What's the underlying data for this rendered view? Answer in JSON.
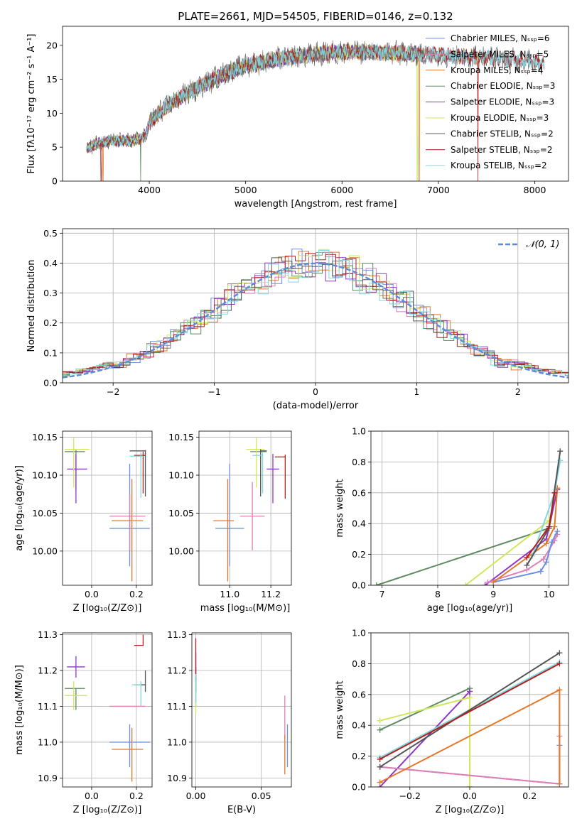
{
  "colors": {
    "Chabrier MILES": "#6d8fe0",
    "Salpeter MILES": "#e27fb4",
    "Kroupa MILES": "#e3772a",
    "Chabrier ELODIE": "#5f8a5f",
    "Salpeter ELODIE": "#8e38c6",
    "Kroupa ELODIE": "#cfe85a",
    "Chabrier STELIB": "#555555",
    "Salpeter STELIB": "#b41e1e",
    "Kroupa STELIB": "#80d8e0"
  },
  "chart_data": [
    {
      "id": "spectrum",
      "type": "line",
      "title": "PLATE=2661, MJD=54505, FIBERID=0146, z=0.132",
      "xlabel": "wavelength [Angstrom, rest frame]",
      "ylabel": "Flux [fλ10⁻¹⁷ erg cm⁻² s⁻¹ A⁻¹]",
      "xlim": [
        3100,
        8350
      ],
      "ylim": [
        0,
        22.8
      ],
      "xticks": [
        4000,
        5000,
        6000,
        7000,
        8000
      ],
      "yticks": [
        0,
        5,
        10,
        15,
        20
      ],
      "legend_placement": "top-right",
      "continuum_anchors": {
        "x": [
          3350,
          3450,
          3600,
          3800,
          3900,
          3960,
          4000,
          4100,
          4200,
          4400,
          4600,
          4800,
          5000,
          5200,
          5500,
          6000,
          6500,
          7000,
          7500,
          8000,
          8100
        ],
        "y": [
          4.8,
          5.5,
          6.0,
          5.9,
          6.2,
          6.6,
          8.6,
          10.0,
          11.2,
          13.0,
          14.5,
          15.9,
          17.0,
          17.6,
          18.3,
          19.0,
          18.9,
          18.6,
          18.2,
          17.6,
          17.3
        ]
      },
      "series": [
        {
          "name": "Chabrier MILES, Nₛₛₚ=6",
          "xrange": [
            3350,
            7400
          ],
          "dip_at": []
        },
        {
          "name": "Salpeter MILES, Nₛₛₚ=5",
          "xrange": [
            3350,
            7400
          ],
          "dip_at": []
        },
        {
          "name": "Kroupa MILES, Nₛₛₚ=4",
          "xrange": [
            3350,
            7420
          ],
          "dip_at": [
            3520,
            6800
          ]
        },
        {
          "name": "Chabrier ELODIE, Nₛₛₚ=3",
          "xrange": [
            3350,
            6800
          ],
          "dip_at": [
            3910
          ]
        },
        {
          "name": "Salpeter ELODIE, Nₛₛₚ=3",
          "xrange": [
            3350,
            6800
          ],
          "dip_at": []
        },
        {
          "name": "Kroupa ELODIE, Nₛₛₚ=3",
          "xrange": [
            3350,
            6800
          ],
          "dip_at": [
            6780
          ]
        },
        {
          "name": "Chabrier STELIB, Nₛₛₚ=2",
          "xrange": [
            3350,
            8100
          ],
          "dip_at": []
        },
        {
          "name": "Salpeter STELIB, Nₛₛₚ=2",
          "xrange": [
            3350,
            8100
          ],
          "dip_at": [
            3500,
            7410
          ]
        },
        {
          "name": "Kroupa STELIB, Nₛₛₚ=2",
          "xrange": [
            3350,
            8100
          ],
          "dip_at": []
        }
      ]
    },
    {
      "id": "residuals",
      "type": "histogram",
      "xlabel": "(data-model)/error",
      "ylabel": "Normed distribution",
      "xlim": [
        -2.5,
        2.5
      ],
      "ylim": [
        0,
        0.515
      ],
      "xticks": [
        -2,
        -1,
        0,
        1,
        2
      ],
      "yticks": [
        0,
        0.1,
        0.2,
        0.3,
        0.4,
        0.5
      ],
      "grid": true,
      "reference_curve": {
        "name": "𝒩(0, 1)",
        "mean": 0,
        "sigma": 1,
        "style": "dashed"
      },
      "bin_width": 0.1
    },
    {
      "id": "age_vs_Z",
      "type": "errorbar",
      "xlabel": "Z [log₁₀(Z/Z⊙)]",
      "ylabel": "age  [log₁₀(age/yr)]",
      "xlim": [
        -0.13,
        0.27
      ],
      "ylim": [
        9.955,
        10.158
      ],
      "xticks": [
        0.0,
        0.2
      ],
      "yticks": [
        10.0,
        10.05,
        10.1,
        10.15
      ],
      "grid": true,
      "points": [
        {
          "series": "Chabrier MILES",
          "x": 0.17,
          "y": 10.03,
          "xerr": [
            0.09,
            0.09
          ],
          "yerr": [
            0.05,
            0.085
          ]
        },
        {
          "series": "Salpeter MILES",
          "x": 0.17,
          "y": 10.046,
          "xerr": [
            0.09,
            0.07
          ],
          "yerr": [
            0.045,
            0.03
          ]
        },
        {
          "series": "Kroupa MILES",
          "x": 0.18,
          "y": 10.04,
          "xerr": [
            0.09,
            0.05
          ],
          "yerr": [
            0.08,
            0.055
          ]
        },
        {
          "series": "Chabrier ELODIE",
          "x": -0.07,
          "y": 10.131,
          "xerr": [
            0.05,
            0.04
          ],
          "yerr": [
            0.05,
            0.002
          ]
        },
        {
          "series": "Salpeter ELODIE",
          "x": -0.07,
          "y": 10.108,
          "xerr": [
            0.04,
            0.05
          ],
          "yerr": [
            0.045,
            0.02
          ]
        },
        {
          "series": "Kroupa ELODIE",
          "x": -0.08,
          "y": 10.134,
          "xerr": [
            0.04,
            0.07
          ],
          "yerr": [
            0.05,
            0.015
          ]
        },
        {
          "series": "Chabrier STELIB",
          "x": 0.24,
          "y": 10.132,
          "xerr": [
            0.07,
            0.002
          ],
          "yerr": [
            0.06,
            0.001
          ]
        },
        {
          "series": "Salpeter STELIB",
          "x": 0.23,
          "y": 10.126,
          "xerr": [
            0.04,
            0.01
          ],
          "yerr": [
            0.05,
            0.005
          ]
        },
        {
          "series": "Kroupa STELIB",
          "x": 0.22,
          "y": 10.125,
          "xerr": [
            0.05,
            0.01
          ],
          "yerr": [
            0.055,
            0.005
          ]
        }
      ]
    },
    {
      "id": "age_vs_mass",
      "type": "errorbar",
      "xlabel": "mass [log₁₀(M/M⊙)]",
      "ylabel": "",
      "xlim": [
        10.85,
        11.3
      ],
      "ylim": [
        9.955,
        10.158
      ],
      "xticks": [
        11.0,
        11.2
      ],
      "yticks": [
        10.0,
        10.05,
        10.1,
        10.15
      ],
      "grid": true,
      "points": [
        {
          "series": "Chabrier MILES",
          "x": 11.0,
          "y": 10.03,
          "xerr": [
            0.07,
            0.07
          ],
          "yerr": [
            0.05,
            0.085
          ]
        },
        {
          "series": "Salpeter MILES",
          "x": 11.11,
          "y": 10.046,
          "xerr": [
            0.06,
            0.06
          ],
          "yerr": [
            0.045,
            0.045
          ]
        },
        {
          "series": "Kroupa MILES",
          "x": 10.99,
          "y": 10.04,
          "xerr": [
            0.07,
            0.03
          ],
          "yerr": [
            0.08,
            0.055
          ]
        },
        {
          "series": "Chabrier ELODIE",
          "x": 11.15,
          "y": 10.131,
          "xerr": [
            0.05,
            0.03
          ],
          "yerr": [
            0.05,
            0.002
          ]
        },
        {
          "series": "Salpeter ELODIE",
          "x": 11.21,
          "y": 10.108,
          "xerr": [
            0.03,
            0.03
          ],
          "yerr": [
            0.045,
            0.02
          ]
        },
        {
          "series": "Kroupa ELODIE",
          "x": 11.13,
          "y": 10.134,
          "xerr": [
            0.05,
            0.04
          ],
          "yerr": [
            0.05,
            0.015
          ]
        },
        {
          "series": "Chabrier STELIB",
          "x": 11.15,
          "y": 10.132,
          "xerr": [
            0.0,
            0.03
          ],
          "yerr": [
            0.06,
            0.002
          ]
        },
        {
          "series": "Salpeter STELIB",
          "x": 11.27,
          "y": 10.124,
          "xerr": [
            0.05,
            0.0
          ],
          "yerr": [
            0.055,
            0.003
          ]
        },
        {
          "series": "Kroupa STELIB",
          "x": 11.16,
          "y": 10.126,
          "xerr": [
            0.05,
            0.0
          ],
          "yerr": [
            0.05,
            0.005
          ]
        }
      ]
    },
    {
      "id": "mass_vs_Z",
      "type": "errorbar",
      "xlabel": "Z [log₁₀(Z/Z⊙)]",
      "ylabel": "mass [log₁₀(M/M⊙)]",
      "xlim": [
        -0.13,
        0.27
      ],
      "ylim": [
        10.875,
        11.305
      ],
      "xticks": [
        0.0,
        0.2
      ],
      "yticks": [
        10.9,
        11.0,
        11.1,
        11.2,
        11.3
      ],
      "grid": true,
      "points": [
        {
          "series": "Chabrier MILES",
          "x": 0.17,
          "y": 11.0,
          "xerr": [
            0.09,
            0.09
          ],
          "yerr": [
            0.07,
            0.05
          ]
        },
        {
          "series": "Salpeter MILES",
          "x": 0.17,
          "y": 11.1,
          "xerr": [
            0.09,
            0.07
          ],
          "yerr": [
            0.0,
            0.0
          ]
        },
        {
          "series": "Kroupa MILES",
          "x": 0.18,
          "y": 10.98,
          "xerr": [
            0.09,
            0.05
          ],
          "yerr": [
            0.09,
            0.06
          ]
        },
        {
          "series": "Chabrier ELODIE",
          "x": -0.07,
          "y": 11.15,
          "xerr": [
            0.05,
            0.04
          ],
          "yerr": [
            0.06,
            0.0
          ]
        },
        {
          "series": "Salpeter ELODIE",
          "x": -0.07,
          "y": 11.21,
          "xerr": [
            0.04,
            0.04
          ],
          "yerr": [
            0.03,
            0.03
          ]
        },
        {
          "series": "Kroupa ELODIE",
          "x": -0.08,
          "y": 11.13,
          "xerr": [
            0.04,
            0.06
          ],
          "yerr": [
            0.04,
            0.04
          ]
        },
        {
          "series": "Chabrier STELIB",
          "x": 0.24,
          "y": 11.16,
          "xerr": [
            0.05,
            0.002
          ],
          "yerr": [
            0.02,
            0.04
          ]
        },
        {
          "series": "Salpeter STELIB",
          "x": 0.23,
          "y": 11.27,
          "xerr": [
            0.04,
            0.002
          ],
          "yerr": [
            0.0,
            0.03
          ]
        },
        {
          "series": "Kroupa STELIB",
          "x": 0.22,
          "y": 11.16,
          "xerr": [
            0.04,
            0.002
          ],
          "yerr": [
            0.06,
            0.01
          ]
        }
      ]
    },
    {
      "id": "mass_vs_ebv",
      "type": "errorbar",
      "xlabel": "E(B-V)",
      "ylabel": "",
      "xlim": [
        -0.003,
        0.073
      ],
      "ylim": [
        10.875,
        11.305
      ],
      "xticks": [
        0.0,
        0.05
      ],
      "yticks": [
        10.9,
        11.0,
        11.1,
        11.2,
        11.3
      ],
      "grid": true,
      "points": [
        {
          "series": "Chabrier MILES",
          "x": 0.07,
          "y": 11.0,
          "xerr": [
            0,
            0
          ],
          "yerr": [
            0.07,
            0.05
          ]
        },
        {
          "series": "Salpeter MILES",
          "x": 0.068,
          "y": 11.07,
          "xerr": [
            0,
            0
          ],
          "yerr": [
            0.06,
            0.06
          ]
        },
        {
          "series": "Kroupa MILES",
          "x": 0.068,
          "y": 10.98,
          "xerr": [
            0,
            0
          ],
          "yerr": [
            0.07,
            0.04
          ]
        },
        {
          "series": "Chabrier ELODIE",
          "x": 0.0,
          "y": 11.15,
          "xerr": [
            0,
            0
          ],
          "yerr": [
            0.05,
            0.03
          ]
        },
        {
          "series": "Salpeter ELODIE",
          "x": 0.0,
          "y": 11.21,
          "xerr": [
            0,
            0
          ],
          "yerr": [
            0.04,
            0.04
          ]
        },
        {
          "series": "Kroupa ELODIE",
          "x": 0.0,
          "y": 11.13,
          "xerr": [
            0,
            0
          ],
          "yerr": [
            0.05,
            0.03
          ]
        },
        {
          "series": "Chabrier STELIB",
          "x": 0.0,
          "y": 11.17,
          "xerr": [
            0,
            0
          ],
          "yerr": [
            0.03,
            0.04
          ]
        },
        {
          "series": "Salpeter STELIB",
          "x": 0.0,
          "y": 11.24,
          "xerr": [
            0,
            0
          ],
          "yerr": [
            0.05,
            0.05
          ]
        },
        {
          "series": "Kroupa STELIB",
          "x": 0.0,
          "y": 11.15,
          "xerr": [
            0,
            0
          ],
          "yerr": [
            0.04,
            0.04
          ]
        }
      ]
    },
    {
      "id": "weight_vs_age",
      "type": "line",
      "xlabel": "age  [log₁₀(age/yr)]",
      "ylabel": "mass weight",
      "xlim": [
        6.8,
        10.35
      ],
      "ylim": [
        0,
        1.0
      ],
      "xticks": [
        7,
        8,
        9,
        10
      ],
      "yticks": [
        0.0,
        0.2,
        0.4,
        0.6,
        0.8,
        1.0
      ],
      "grid": true,
      "series": [
        {
          "name": "Chabrier ELODIE",
          "x": [
            6.9,
            10.0,
            10.15
          ],
          "y": [
            0.0,
            0.37,
            0.63
          ]
        },
        {
          "name": "Kroupa ELODIE",
          "x": [
            8.5,
            10.0,
            10.1
          ],
          "y": [
            0.0,
            0.42,
            0.55
          ]
        },
        {
          "name": "Salpeter ELODIE",
          "x": [
            8.85,
            9.95,
            10.15
          ],
          "y": [
            0.0,
            0.3,
            0.62
          ]
        },
        {
          "name": "Salpeter MILES",
          "x": [
            8.9,
            9.6,
            9.9,
            10.1,
            10.15
          ],
          "y": [
            0.02,
            0.1,
            0.17,
            0.29,
            0.33
          ]
        },
        {
          "name": "Chabrier MILES",
          "x": [
            9.0,
            9.85,
            9.95,
            10.05,
            10.15
          ],
          "y": [
            0.02,
            0.09,
            0.15,
            0.28,
            0.35
          ]
        },
        {
          "name": "Kroupa MILES",
          "x": [
            9.0,
            9.95,
            10.1,
            10.15
          ],
          "y": [
            0.02,
            0.27,
            0.38,
            0.63
          ]
        },
        {
          "name": "Kroupa STELIB",
          "x": [
            9.7,
            10.1,
            10.2
          ],
          "y": [
            0.19,
            0.6,
            0.81
          ]
        },
        {
          "name": "Chabrier STELIB",
          "x": [
            9.6,
            10.0,
            10.2
          ],
          "y": [
            0.13,
            0.37,
            0.87
          ]
        },
        {
          "name": "Salpeter STELIB",
          "x": [
            9.6,
            10.0,
            10.1
          ],
          "y": [
            0.18,
            0.38,
            0.6
          ]
        }
      ]
    },
    {
      "id": "weight_vs_Z",
      "type": "line",
      "xlabel": "Z [log₁₀(Z/Z⊙)]",
      "ylabel": "mass weight",
      "xlim": [
        -0.33,
        0.33
      ],
      "ylim": [
        0,
        1.0
      ],
      "xticks": [
        -0.2,
        0.0,
        0.2
      ],
      "yticks": [
        0.0,
        0.2,
        0.4,
        0.6,
        0.8,
        1.0
      ],
      "grid": true,
      "series": [
        {
          "name": "Chabrier ELODIE",
          "x": [
            -0.3,
            0.0,
            0.0
          ],
          "y": [
            0.37,
            0.64,
            0.0
          ]
        },
        {
          "name": "Salpeter ELODIE",
          "x": [
            -0.3,
            0.0,
            0.0
          ],
          "y": [
            0.0,
            0.62,
            0.0
          ]
        },
        {
          "name": "Kroupa ELODIE",
          "x": [
            -0.3,
            0.0,
            0.0
          ],
          "y": [
            0.43,
            0.58,
            0.0
          ]
        },
        {
          "name": "Chabrier MILES",
          "x": [
            -0.3,
            0.3,
            0.3
          ],
          "y": [
            0.13,
            0.02,
            0.27
          ]
        },
        {
          "name": "Salpeter MILES",
          "x": [
            -0.3,
            0.3,
            0.3
          ],
          "y": [
            0.13,
            0.02,
            0.33
          ]
        },
        {
          "name": "Kroupa MILES",
          "x": [
            -0.3,
            0.3,
            0.3
          ],
          "y": [
            0.03,
            0.63,
            0.02
          ]
        },
        {
          "name": "Kroupa STELIB",
          "x": [
            -0.3,
            0.3
          ],
          "y": [
            0.19,
            0.81
          ]
        },
        {
          "name": "Chabrier STELIB",
          "x": [
            -0.3,
            0.3
          ],
          "y": [
            0.13,
            0.87
          ]
        },
        {
          "name": "Salpeter STELIB",
          "x": [
            -0.3,
            0.3
          ],
          "y": [
            0.18,
            0.8
          ]
        }
      ]
    }
  ]
}
